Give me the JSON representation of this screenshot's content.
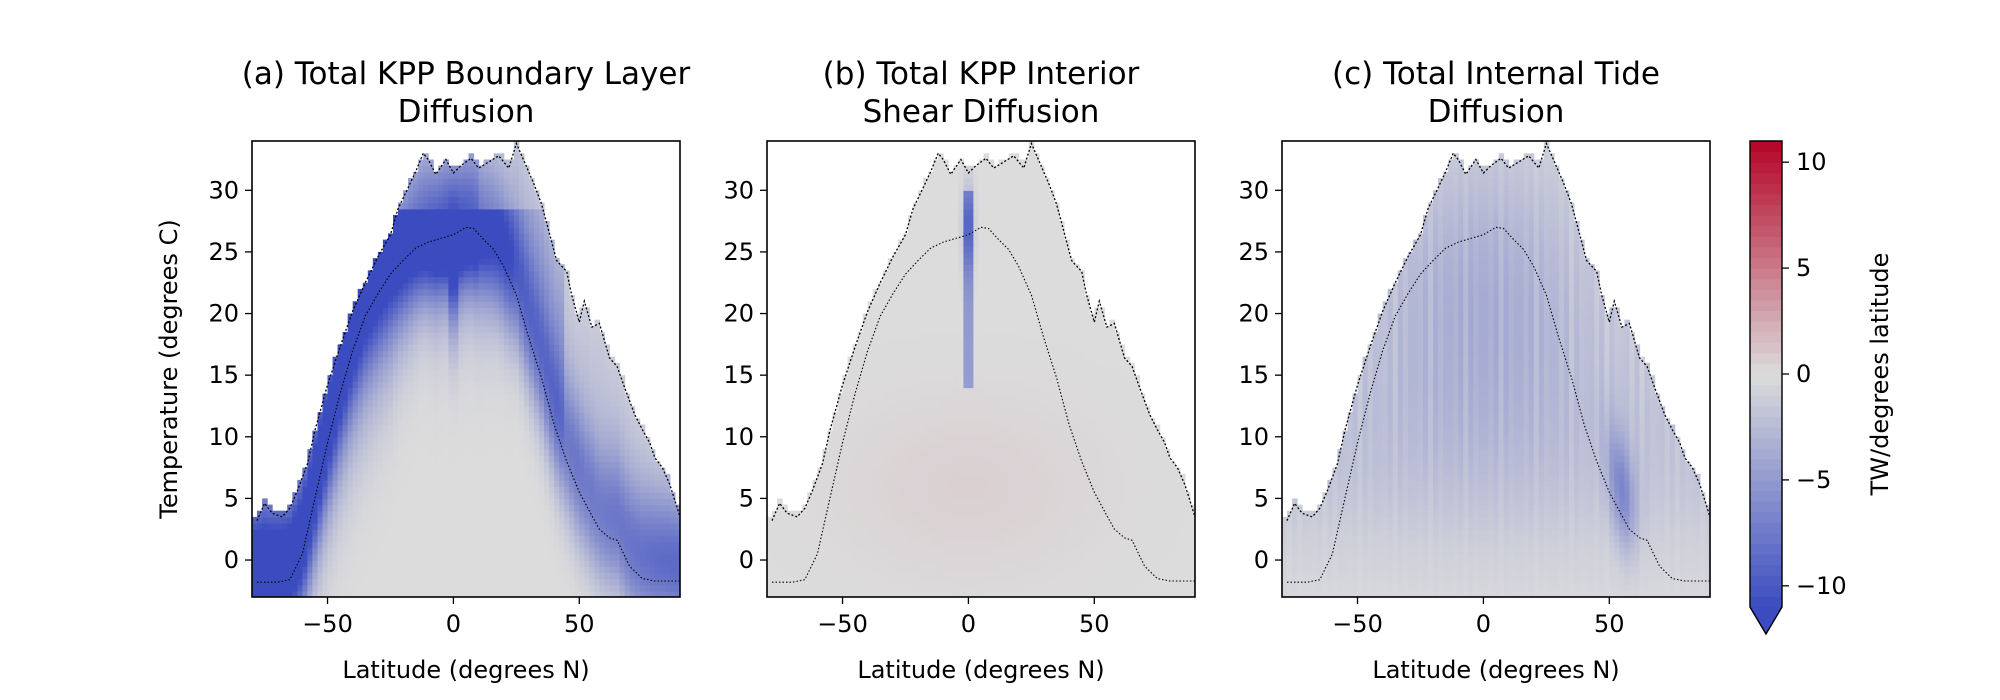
{
  "chart_data": [
    {
      "type": "heatmap",
      "title_lines": [
        "(a) Total KPP Boundary Layer",
        "Diffusion"
      ],
      "xlabel": "Latitude (degrees N)",
      "ylabel": "Temperature (degrees C)",
      "xlim": [
        -80,
        90
      ],
      "ylim": [
        -3,
        34
      ],
      "xticks": [
        -50,
        0,
        50
      ],
      "yticks": [
        0,
        5,
        10,
        15,
        20,
        25,
        30
      ],
      "pattern": "boundary",
      "upper_contour": [
        [
          -78,
          3.2
        ],
        [
          -75,
          4.6
        ],
        [
          -72,
          3.8
        ],
        [
          -68,
          3.5
        ],
        [
          -65,
          4.2
        ],
        [
          -62,
          5.6
        ],
        [
          -58,
          7.8
        ],
        [
          -55,
          10.5
        ],
        [
          -50,
          14.2
        ],
        [
          -45,
          17.3
        ],
        [
          -40,
          20.2
        ],
        [
          -35,
          22.5
        ],
        [
          -30,
          24.6
        ],
        [
          -25,
          26.4
        ],
        [
          -22,
          28.5
        ],
        [
          -18,
          30.2
        ],
        [
          -15,
          31.5
        ],
        [
          -12,
          33.0
        ],
        [
          -10,
          32.5
        ],
        [
          -7,
          31.3
        ],
        [
          -3,
          32.5
        ],
        [
          0,
          31.4
        ],
        [
          3,
          32.0
        ],
        [
          7,
          32.6
        ],
        [
          10,
          31.8
        ],
        [
          14,
          32.3
        ],
        [
          18,
          32.8
        ],
        [
          22,
          31.8
        ],
        [
          25,
          33.8
        ],
        [
          28,
          32.4
        ],
        [
          32,
          30.5
        ],
        [
          35,
          28.9
        ],
        [
          38,
          26.6
        ],
        [
          41,
          24.3
        ],
        [
          45,
          23.4
        ],
        [
          47,
          21.5
        ],
        [
          50,
          19.3
        ],
        [
          52,
          21.0
        ],
        [
          55,
          18.9
        ],
        [
          58,
          19.2
        ],
        [
          62,
          16.4
        ],
        [
          65,
          15.7
        ],
        [
          68,
          14.0
        ],
        [
          72,
          11.8
        ],
        [
          75,
          10.6
        ],
        [
          78,
          9.5
        ],
        [
          80,
          8.3
        ],
        [
          83,
          7.5
        ],
        [
          86,
          6.1
        ],
        [
          88,
          4.8
        ],
        [
          90,
          3.5
        ]
      ],
      "lower_contour": [
        [
          -78,
          -1.8
        ],
        [
          -70,
          -1.8
        ],
        [
          -65,
          -1.6
        ],
        [
          -60,
          0.5
        ],
        [
          -55,
          5.0
        ],
        [
          -50,
          9.5
        ],
        [
          -45,
          13.5
        ],
        [
          -40,
          17.0
        ],
        [
          -35,
          19.8
        ],
        [
          -30,
          21.6
        ],
        [
          -25,
          23.2
        ],
        [
          -20,
          24.3
        ],
        [
          -15,
          25.3
        ],
        [
          -10,
          25.8
        ],
        [
          -5,
          26.1
        ],
        [
          0,
          26.4
        ],
        [
          5,
          27.0
        ],
        [
          8,
          26.9
        ],
        [
          12,
          26.0
        ],
        [
          16,
          25.2
        ],
        [
          20,
          23.8
        ],
        [
          25,
          21.5
        ],
        [
          30,
          18.0
        ],
        [
          35,
          14.8
        ],
        [
          40,
          11.0
        ],
        [
          45,
          8.0
        ],
        [
          50,
          5.5
        ],
        [
          55,
          3.6
        ],
        [
          58,
          2.5
        ],
        [
          62,
          1.8
        ],
        [
          65,
          1.6
        ],
        [
          70,
          -0.5
        ],
        [
          75,
          -1.5
        ],
        [
          80,
          -1.7
        ],
        [
          90,
          -1.7
        ]
      ]
    },
    {
      "type": "heatmap",
      "title_lines": [
        "(b) Total KPP Interior",
        "Shear Diffusion"
      ],
      "xlabel": "Latitude (degrees N)",
      "ylabel": "",
      "xlim": [
        -80,
        90
      ],
      "ylim": [
        -3,
        34
      ],
      "xticks": [
        -50,
        0,
        50
      ],
      "yticks": [
        0,
        5,
        10,
        15,
        20,
        25,
        30
      ],
      "pattern": "shear",
      "upper_contour": [
        [
          -78,
          3.2
        ],
        [
          -75,
          4.6
        ],
        [
          -72,
          3.8
        ],
        [
          -68,
          3.5
        ],
        [
          -65,
          4.2
        ],
        [
          -62,
          5.6
        ],
        [
          -58,
          7.8
        ],
        [
          -55,
          10.5
        ],
        [
          -50,
          14.2
        ],
        [
          -45,
          17.3
        ],
        [
          -40,
          20.2
        ],
        [
          -35,
          22.5
        ],
        [
          -30,
          24.6
        ],
        [
          -25,
          26.4
        ],
        [
          -22,
          28.5
        ],
        [
          -18,
          30.2
        ],
        [
          -15,
          31.5
        ],
        [
          -12,
          33.0
        ],
        [
          -10,
          32.5
        ],
        [
          -7,
          31.3
        ],
        [
          -3,
          32.5
        ],
        [
          0,
          31.4
        ],
        [
          3,
          32.0
        ],
        [
          7,
          32.6
        ],
        [
          10,
          31.8
        ],
        [
          14,
          32.3
        ],
        [
          18,
          32.8
        ],
        [
          22,
          31.8
        ],
        [
          25,
          33.8
        ],
        [
          28,
          32.4
        ],
        [
          32,
          30.5
        ],
        [
          35,
          28.9
        ],
        [
          38,
          26.6
        ],
        [
          41,
          24.3
        ],
        [
          45,
          23.4
        ],
        [
          47,
          21.5
        ],
        [
          50,
          19.3
        ],
        [
          52,
          21.0
        ],
        [
          55,
          18.9
        ],
        [
          58,
          19.2
        ],
        [
          62,
          16.4
        ],
        [
          65,
          15.7
        ],
        [
          68,
          14.0
        ],
        [
          72,
          11.8
        ],
        [
          75,
          10.6
        ],
        [
          78,
          9.5
        ],
        [
          80,
          8.3
        ],
        [
          83,
          7.5
        ],
        [
          86,
          6.1
        ],
        [
          88,
          4.8
        ],
        [
          90,
          3.5
        ]
      ],
      "lower_contour": [
        [
          -78,
          -1.8
        ],
        [
          -70,
          -1.8
        ],
        [
          -65,
          -1.6
        ],
        [
          -60,
          0.5
        ],
        [
          -55,
          5.0
        ],
        [
          -50,
          9.5
        ],
        [
          -45,
          13.5
        ],
        [
          -40,
          17.0
        ],
        [
          -35,
          19.8
        ],
        [
          -30,
          21.6
        ],
        [
          -25,
          23.2
        ],
        [
          -20,
          24.3
        ],
        [
          -15,
          25.3
        ],
        [
          -10,
          25.8
        ],
        [
          -5,
          26.1
        ],
        [
          0,
          26.4
        ],
        [
          5,
          27.0
        ],
        [
          8,
          26.9
        ],
        [
          12,
          26.0
        ],
        [
          16,
          25.2
        ],
        [
          20,
          23.8
        ],
        [
          25,
          21.5
        ],
        [
          30,
          18.0
        ],
        [
          35,
          14.8
        ],
        [
          40,
          11.0
        ],
        [
          45,
          8.0
        ],
        [
          50,
          5.5
        ],
        [
          55,
          3.6
        ],
        [
          58,
          2.5
        ],
        [
          62,
          1.8
        ],
        [
          65,
          1.6
        ],
        [
          70,
          -0.5
        ],
        [
          75,
          -1.5
        ],
        [
          80,
          -1.7
        ],
        [
          90,
          -1.7
        ]
      ]
    },
    {
      "type": "heatmap",
      "title_lines": [
        "(c) Total Internal Tide",
        "Diffusion"
      ],
      "xlabel": "Latitude (degrees N)",
      "ylabel": "",
      "xlim": [
        -80,
        90
      ],
      "ylim": [
        -3,
        34
      ],
      "xticks": [
        -50,
        0,
        50
      ],
      "yticks": [
        0,
        5,
        10,
        15,
        20,
        25,
        30
      ],
      "pattern": "tide",
      "upper_contour": [
        [
          -78,
          3.2
        ],
        [
          -75,
          4.6
        ],
        [
          -72,
          3.8
        ],
        [
          -68,
          3.5
        ],
        [
          -65,
          4.2
        ],
        [
          -62,
          5.6
        ],
        [
          -58,
          7.8
        ],
        [
          -55,
          10.5
        ],
        [
          -50,
          14.2
        ],
        [
          -45,
          17.3
        ],
        [
          -40,
          20.2
        ],
        [
          -35,
          22.5
        ],
        [
          -30,
          24.6
        ],
        [
          -25,
          26.4
        ],
        [
          -22,
          28.5
        ],
        [
          -18,
          30.2
        ],
        [
          -15,
          31.5
        ],
        [
          -12,
          33.0
        ],
        [
          -10,
          32.5
        ],
        [
          -7,
          31.3
        ],
        [
          -3,
          32.5
        ],
        [
          0,
          31.4
        ],
        [
          3,
          32.0
        ],
        [
          7,
          32.6
        ],
        [
          10,
          31.8
        ],
        [
          14,
          32.3
        ],
        [
          18,
          32.8
        ],
        [
          22,
          31.8
        ],
        [
          25,
          33.8
        ],
        [
          28,
          32.4
        ],
        [
          32,
          30.5
        ],
        [
          35,
          28.9
        ],
        [
          38,
          26.6
        ],
        [
          41,
          24.3
        ],
        [
          45,
          23.4
        ],
        [
          47,
          21.5
        ],
        [
          50,
          19.3
        ],
        [
          52,
          21.0
        ],
        [
          55,
          18.9
        ],
        [
          58,
          19.2
        ],
        [
          62,
          16.4
        ],
        [
          65,
          15.7
        ],
        [
          68,
          14.0
        ],
        [
          72,
          11.8
        ],
        [
          75,
          10.6
        ],
        [
          78,
          9.5
        ],
        [
          80,
          8.3
        ],
        [
          83,
          7.5
        ],
        [
          86,
          6.1
        ],
        [
          88,
          4.8
        ],
        [
          90,
          3.5
        ]
      ],
      "lower_contour": [
        [
          -78,
          -1.8
        ],
        [
          -70,
          -1.8
        ],
        [
          -65,
          -1.6
        ],
        [
          -60,
          0.5
        ],
        [
          -55,
          5.0
        ],
        [
          -50,
          9.5
        ],
        [
          -45,
          13.5
        ],
        [
          -40,
          17.0
        ],
        [
          -35,
          19.8
        ],
        [
          -30,
          21.6
        ],
        [
          -25,
          23.2
        ],
        [
          -20,
          24.3
        ],
        [
          -15,
          25.3
        ],
        [
          -10,
          25.8
        ],
        [
          -5,
          26.1
        ],
        [
          0,
          26.4
        ],
        [
          5,
          27.0
        ],
        [
          8,
          26.9
        ],
        [
          12,
          26.0
        ],
        [
          16,
          25.2
        ],
        [
          20,
          23.8
        ],
        [
          25,
          21.5
        ],
        [
          30,
          18.0
        ],
        [
          35,
          14.8
        ],
        [
          40,
          11.0
        ],
        [
          45,
          8.0
        ],
        [
          50,
          5.5
        ],
        [
          55,
          3.6
        ],
        [
          58,
          2.5
        ],
        [
          62,
          1.8
        ],
        [
          65,
          1.6
        ],
        [
          70,
          -0.5
        ],
        [
          75,
          -1.5
        ],
        [
          80,
          -1.7
        ],
        [
          90,
          -1.7
        ]
      ]
    }
  ],
  "colorbar": {
    "label": "TW/degrees latitude",
    "range": [
      -11,
      11
    ],
    "ticks": [
      -10,
      -5,
      0,
      5,
      10
    ],
    "extend": "min",
    "colormap": "coolwarm",
    "color_min": "#3b4cc0",
    "color_mid": "#dcdcdc",
    "color_max": "#b40426",
    "color_out_of_range": "#dcdcdc"
  }
}
